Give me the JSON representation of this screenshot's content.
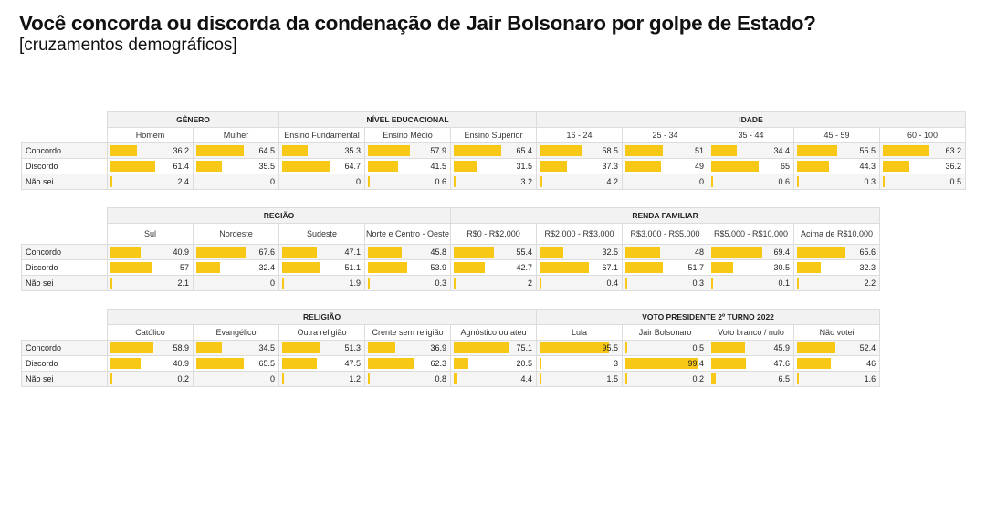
{
  "title": "Você concorda ou discorda da condenação de Jair Bolsonaro por golpe de Estado?",
  "subtitle": "[cruzamentos demográficos]",
  "colors": {
    "bar": "#f7c815",
    "header_bg": "#f2f2f2",
    "alt_row": "#f5f5f5"
  },
  "row_labels": [
    "Concordo",
    "Discordo",
    "Não sei"
  ],
  "chart_data": {
    "type": "table",
    "bar_scale_max": 100,
    "tables": [
      {
        "groups": [
          {
            "name": "GÊNERO",
            "columns": [
              {
                "label": "Homem",
                "values": [
                  36.2,
                  61.4,
                  2.4
                ]
              },
              {
                "label": "Mulher",
                "values": [
                  64.5,
                  35.5,
                  0
                ]
              }
            ]
          },
          {
            "name": "NÍVEL EDUCACIONAL",
            "columns": [
              {
                "label": "Ensino Fundamental",
                "values": [
                  35.3,
                  64.7,
                  0
                ]
              },
              {
                "label": "Ensino Médio",
                "values": [
                  57.9,
                  41.5,
                  0.6
                ]
              },
              {
                "label": "Ensino Superior",
                "values": [
                  65.4,
                  31.5,
                  3.2
                ]
              }
            ]
          },
          {
            "name": "IDADE",
            "columns": [
              {
                "label": "16 - 24",
                "values": [
                  58.5,
                  37.3,
                  4.2
                ]
              },
              {
                "label": "25 - 34",
                "values": [
                  51,
                  49,
                  0
                ]
              },
              {
                "label": "35 - 44",
                "values": [
                  34.4,
                  65,
                  0.6
                ]
              },
              {
                "label": "45 - 59",
                "values": [
                  55.5,
                  44.3,
                  0.3
                ]
              },
              {
                "label": "60 - 100",
                "values": [
                  63.2,
                  36.2,
                  0.5
                ]
              }
            ]
          }
        ]
      },
      {
        "groups": [
          {
            "name": "REGIÃO",
            "columns": [
              {
                "label": "Sul",
                "values": [
                  40.9,
                  57,
                  2.1
                ]
              },
              {
                "label": "Nordeste",
                "values": [
                  67.6,
                  32.4,
                  0
                ]
              },
              {
                "label": "Sudeste",
                "values": [
                  47.1,
                  51.1,
                  1.9
                ]
              },
              {
                "label": "Norte e Centro - Oeste",
                "values": [
                  45.8,
                  53.9,
                  0.3
                ]
              }
            ]
          },
          {
            "name": "RENDA FAMILIAR",
            "columns": [
              {
                "label": "R$0 - R$2,000",
                "values": [
                  55.4,
                  42.7,
                  2
                ]
              },
              {
                "label": "R$2,000 - R$3,000",
                "values": [
                  32.5,
                  67.1,
                  0.4
                ]
              },
              {
                "label": "R$3,000 - R$5,000",
                "values": [
                  48,
                  51.7,
                  0.3
                ]
              },
              {
                "label": "R$5,000 - R$10,000",
                "values": [
                  69.4,
                  30.5,
                  0.1
                ]
              },
              {
                "label": "Acima de R$10,000",
                "values": [
                  65.6,
                  32.3,
                  2.2
                ]
              }
            ]
          }
        ]
      },
      {
        "groups": [
          {
            "name": "RELIGIÃO",
            "columns": [
              {
                "label": "Católico",
                "values": [
                  58.9,
                  40.9,
                  0.2
                ]
              },
              {
                "label": "Evangélico",
                "values": [
                  34.5,
                  65.5,
                  0
                ]
              },
              {
                "label": "Outra religião",
                "values": [
                  51.3,
                  47.5,
                  1.2
                ]
              },
              {
                "label": "Crente sem religião",
                "values": [
                  36.9,
                  62.3,
                  0.8
                ]
              },
              {
                "label": "Agnóstico ou ateu",
                "values": [
                  75.1,
                  20.5,
                  4.4
                ]
              }
            ]
          },
          {
            "name": "VOTO PRESIDENTE 2º TURNO 2022",
            "columns": [
              {
                "label": "Lula",
                "values": [
                  95.5,
                  3,
                  1.5
                ]
              },
              {
                "label": "Jair Bolsonaro",
                "values": [
                  0.5,
                  99.4,
                  0.2
                ]
              },
              {
                "label": "Voto branco / nulo",
                "values": [
                  45.9,
                  47.6,
                  6.5
                ]
              },
              {
                "label": "Não votei",
                "values": [
                  52.4,
                  46,
                  1.6
                ]
              }
            ]
          }
        ]
      }
    ]
  }
}
